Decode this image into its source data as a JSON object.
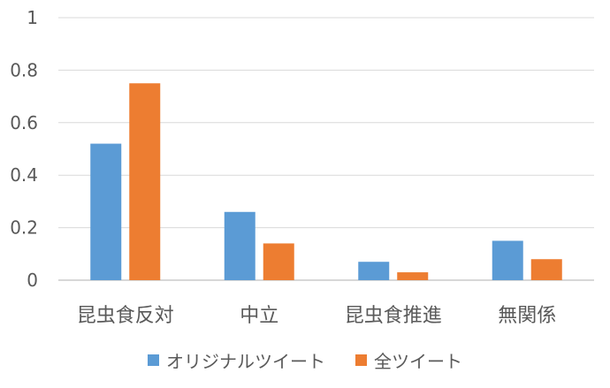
{
  "chart_data": {
    "type": "bar",
    "categories": [
      "昆虫食反対",
      "中立",
      "昆虫食推進",
      "無関係"
    ],
    "series": [
      {
        "name": "オリジナルツイート",
        "values": [
          0.52,
          0.26,
          0.07,
          0.15
        ],
        "color": "#5B9BD5"
      },
      {
        "name": "全ツイート",
        "values": [
          0.75,
          0.14,
          0.03,
          0.08
        ],
        "color": "#ED7D31"
      }
    ],
    "ylim": [
      0,
      1
    ],
    "yticks": [
      0,
      0.2,
      0.4,
      0.6,
      0.8,
      1
    ],
    "ytick_labels": [
      "0",
      "0.2",
      "0.4",
      "0.6",
      "0.8",
      "1"
    ],
    "grid": true,
    "legend_position": "bottom",
    "title": "",
    "xlabel": "",
    "ylabel": ""
  }
}
